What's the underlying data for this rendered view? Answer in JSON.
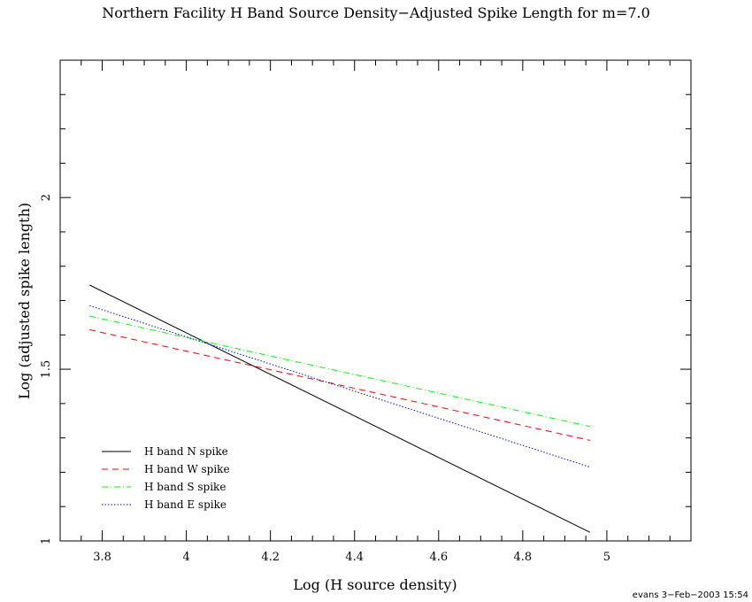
{
  "chart_data": {
    "type": "line",
    "title": "Northern Facility H Band Source Density−Adjusted Spike Length for m=7.0",
    "xlabel": "Log (H source density)",
    "ylabel": "Log (adjusted spike length)",
    "xlim": [
      3.7,
      5.2
    ],
    "ylim": [
      1.0,
      2.4
    ],
    "x_ticks": [
      3.8,
      4.0,
      4.2,
      4.4,
      4.6,
      4.8,
      5.0
    ],
    "x_tick_labels": [
      "3.8",
      "4",
      "4.2",
      "4.4",
      "4.6",
      "4.8",
      "5"
    ],
    "y_ticks": [
      1.0,
      1.5,
      2.0
    ],
    "y_tick_labels": [
      "1",
      "1.5",
      "2"
    ],
    "grid": false,
    "legend_position": "bottom-left",
    "series": [
      {
        "name": "H band N spike",
        "color": "#000000",
        "dash": "solid",
        "x": [
          3.77,
          4.96
        ],
        "y": [
          1.745,
          1.025
        ]
      },
      {
        "name": "H band W spike",
        "color": "#ff0000",
        "dash": "dashed",
        "x": [
          3.77,
          4.96
        ],
        "y": [
          1.615,
          1.293
        ]
      },
      {
        "name": "H band S spike",
        "color": "#00ff00",
        "dash": "dashdot",
        "x": [
          3.77,
          4.96
        ],
        "y": [
          1.655,
          1.333
        ]
      },
      {
        "name": "H band E spike",
        "color": "#0000ff",
        "dash": "dotted",
        "x": [
          3.77,
          4.96
        ],
        "y": [
          1.685,
          1.215
        ]
      }
    ]
  },
  "footer_stamp": "evans  3−Feb−2003 15:54"
}
